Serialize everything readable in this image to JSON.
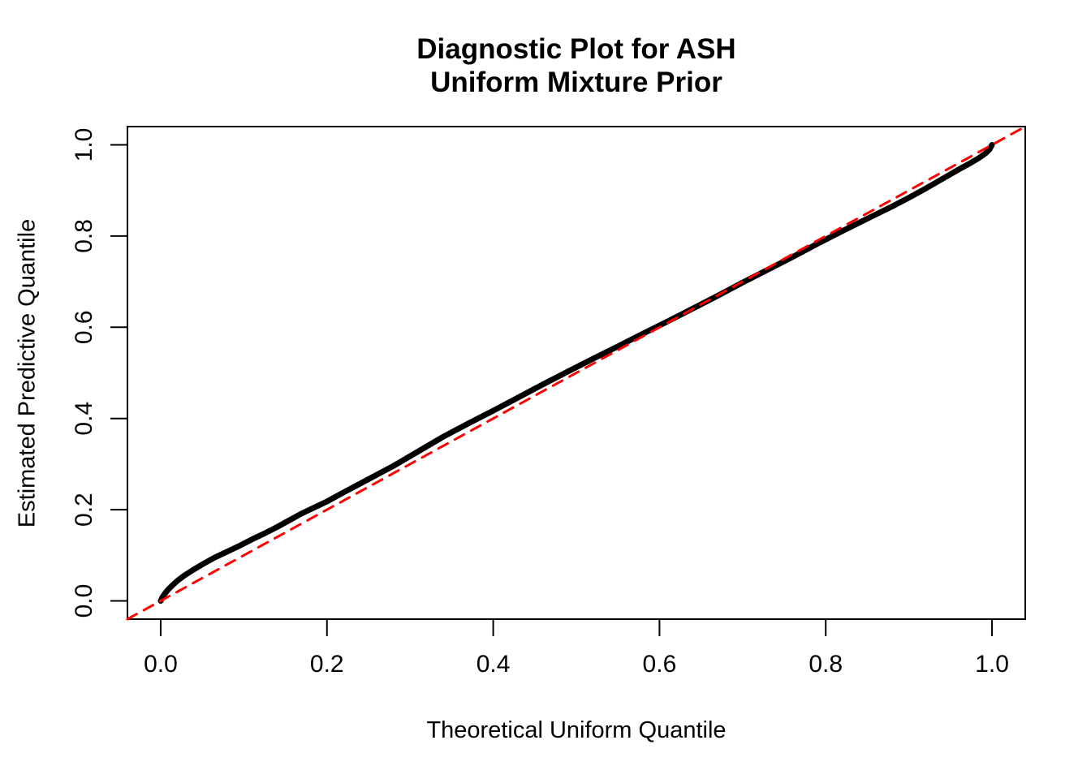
{
  "figure": {
    "title_line1": "Diagnostic Plot for ASH",
    "title_line2": "Uniform Mixture Prior",
    "x_axis_title": "Theoretical Uniform Quantile",
    "y_axis_title": "Estimated Predictive Quantile"
  },
  "chart_data": {
    "type": "line",
    "title": "Diagnostic Plot for ASH\nUniform Mixture Prior",
    "xlabel": "Theoretical Uniform Quantile",
    "ylabel": "Estimated Predictive Quantile",
    "xlim": [
      -0.04,
      1.04
    ],
    "ylim": [
      -0.04,
      1.04
    ],
    "grid": false,
    "legend": "none",
    "x_ticks": [
      0.0,
      0.2,
      0.4,
      0.6,
      0.8,
      1.0
    ],
    "y_ticks": [
      0.0,
      0.2,
      0.4,
      0.6,
      0.8,
      1.0
    ],
    "x_tick_labels": [
      "0.0",
      "0.2",
      "0.4",
      "0.6",
      "0.8",
      "1.0"
    ],
    "y_tick_labels": [
      "0.0",
      "0.2",
      "0.4",
      "0.6",
      "0.8",
      "1.0"
    ],
    "colors": {
      "curve": "#000000",
      "reference_line": "#FF0000",
      "frame": "#000000",
      "text": "#000000",
      "background": "#FFFFFF"
    },
    "series": [
      {
        "id": "predictive-quantile-curve",
        "name": "Estimated predictive quantile vs theoretical uniform quantile",
        "type": "line",
        "color": "#000000",
        "width": 7,
        "dash": null,
        "points": [
          [
            0.0,
            0.0
          ],
          [
            0.002,
            0.008
          ],
          [
            0.005,
            0.016
          ],
          [
            0.009,
            0.025
          ],
          [
            0.014,
            0.034
          ],
          [
            0.02,
            0.044
          ],
          [
            0.028,
            0.055
          ],
          [
            0.038,
            0.067
          ],
          [
            0.05,
            0.08
          ],
          [
            0.065,
            0.095
          ],
          [
            0.08,
            0.108
          ],
          [
            0.095,
            0.121
          ],
          [
            0.11,
            0.135
          ],
          [
            0.125,
            0.148
          ],
          [
            0.14,
            0.162
          ],
          [
            0.155,
            0.177
          ],
          [
            0.17,
            0.192
          ],
          [
            0.185,
            0.205
          ],
          [
            0.2,
            0.218
          ],
          [
            0.22,
            0.238
          ],
          [
            0.25,
            0.267
          ],
          [
            0.28,
            0.296
          ],
          [
            0.31,
            0.328
          ],
          [
            0.34,
            0.36
          ],
          [
            0.37,
            0.389
          ],
          [
            0.4,
            0.417
          ],
          [
            0.43,
            0.446
          ],
          [
            0.46,
            0.475
          ],
          [
            0.49,
            0.503
          ],
          [
            0.52,
            0.531
          ],
          [
            0.55,
            0.558
          ],
          [
            0.58,
            0.586
          ],
          [
            0.61,
            0.613
          ],
          [
            0.64,
            0.641
          ],
          [
            0.67,
            0.669
          ],
          [
            0.7,
            0.698
          ],
          [
            0.73,
            0.726
          ],
          [
            0.76,
            0.754
          ],
          [
            0.79,
            0.783
          ],
          [
            0.82,
            0.811
          ],
          [
            0.85,
            0.838
          ],
          [
            0.88,
            0.865
          ],
          [
            0.9,
            0.884
          ],
          [
            0.92,
            0.904
          ],
          [
            0.94,
            0.925
          ],
          [
            0.96,
            0.946
          ],
          [
            0.975,
            0.961
          ],
          [
            0.985,
            0.972
          ],
          [
            0.992,
            0.981
          ],
          [
            0.997,
            0.99
          ],
          [
            1.0,
            1.0
          ]
        ]
      },
      {
        "id": "identity-reference-line",
        "name": "y = x reference diagonal (dashed)",
        "type": "line",
        "color": "#FF0000",
        "width": 3,
        "dash": [
          13,
          10
        ],
        "points": [
          [
            -0.04,
            -0.04
          ],
          [
            1.04,
            1.04
          ]
        ]
      }
    ]
  }
}
